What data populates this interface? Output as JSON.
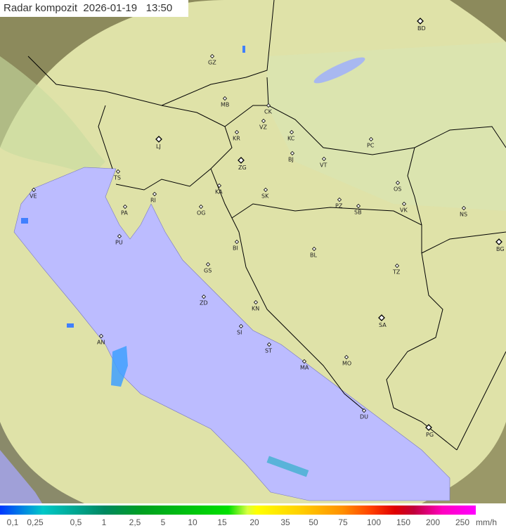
{
  "title": {
    "label": "Radar kompozit",
    "date": "2026-01-19",
    "time": "13:50"
  },
  "legend": {
    "ticks": [
      "0,1",
      "0,25",
      "0,5",
      "1",
      "2,5",
      "5",
      "10",
      "15",
      "20",
      "35",
      "50",
      "75",
      "100",
      "150",
      "200",
      "250"
    ],
    "unit": "mm/h"
  },
  "cities": [
    {
      "code": "GZ",
      "major": false
    },
    {
      "code": "BD",
      "major": true
    },
    {
      "code": "MB",
      "major": false
    },
    {
      "code": "CK",
      "major": false
    },
    {
      "code": "VZ",
      "major": false
    },
    {
      "code": "KR",
      "major": false
    },
    {
      "code": "KC",
      "major": false
    },
    {
      "code": "LJ",
      "major": true
    },
    {
      "code": "PC",
      "major": false
    },
    {
      "code": "ZG",
      "major": true
    },
    {
      "code": "BJ",
      "major": false
    },
    {
      "code": "VT",
      "major": false
    },
    {
      "code": "TS",
      "major": false
    },
    {
      "code": "VE",
      "major": false
    },
    {
      "code": "RI",
      "major": false
    },
    {
      "code": "KA",
      "major": false
    },
    {
      "code": "SK",
      "major": false
    },
    {
      "code": "OS",
      "major": false
    },
    {
      "code": "PA",
      "major": false
    },
    {
      "code": "OG",
      "major": false
    },
    {
      "code": "PZ",
      "major": false
    },
    {
      "code": "SB",
      "major": false
    },
    {
      "code": "VK",
      "major": false
    },
    {
      "code": "NS",
      "major": false
    },
    {
      "code": "PU",
      "major": false
    },
    {
      "code": "BI",
      "major": false
    },
    {
      "code": "BL",
      "major": false
    },
    {
      "code": "BG",
      "major": true
    },
    {
      "code": "GS",
      "major": false
    },
    {
      "code": "TZ",
      "major": false
    },
    {
      "code": "ZD",
      "major": false
    },
    {
      "code": "KN",
      "major": false
    },
    {
      "code": "SA",
      "major": true
    },
    {
      "code": "AN",
      "major": false
    },
    {
      "code": "SI",
      "major": false
    },
    {
      "code": "ST",
      "major": false
    },
    {
      "code": "MO",
      "major": false
    },
    {
      "code": "MA",
      "major": false
    },
    {
      "code": "DU",
      "major": false
    },
    {
      "code": "PG",
      "major": true
    }
  ],
  "colors": {
    "sea": "#bcbcff",
    "land": "#e4e8b0",
    "outside": "#8a8a5a",
    "border": "#000000"
  }
}
